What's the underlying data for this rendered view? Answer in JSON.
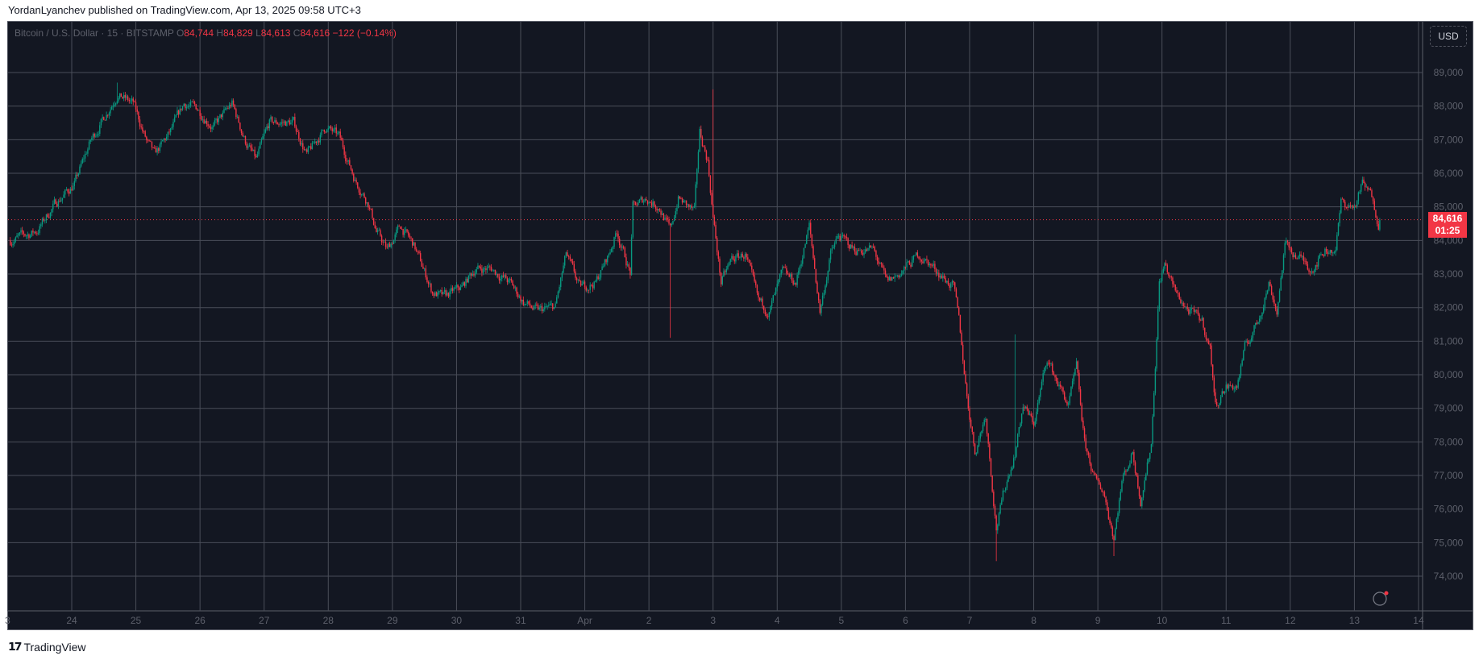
{
  "header": {
    "published": "YordanLyanchev published on TradingView.com, Apr 13, 2025 09:58 UTC+3"
  },
  "legend": {
    "symbol": "Bitcoin / U.S. Dollar · 15 · BITSTAMP",
    "o_label": "O",
    "open": "84,744",
    "h_label": "H",
    "high": "84,829",
    "l_label": "L",
    "low": "84,613",
    "c_label": "C",
    "close": "84,616",
    "change": "−122 (−0.14%)"
  },
  "currency_button": "USD",
  "last_price": {
    "price": "84,616",
    "countdown": "01:25"
  },
  "footer": {
    "logo_text": "TradingView"
  },
  "colors": {
    "background": "#131722",
    "up": "#089981",
    "down": "#f23645",
    "grid": "#4a4e59",
    "axis_text": "#5d606b"
  },
  "chart_data": {
    "type": "candlestick",
    "interval": "15",
    "grid": true,
    "ylim": [
      73000,
      90000
    ],
    "y_ticks": [
      "74,000",
      "75,000",
      "76,000",
      "77,000",
      "78,000",
      "79,000",
      "80,000",
      "81,000",
      "82,000",
      "83,000",
      "84,000",
      "85,000",
      "86,000",
      "87,000",
      "88,000",
      "89,000"
    ],
    "x_ticks": [
      "3",
      "24",
      "25",
      "26",
      "27",
      "28",
      "29",
      "30",
      "31",
      "Apr",
      "2",
      "3",
      "4",
      "5",
      "6",
      "7",
      "8",
      "9",
      "10",
      "11",
      "12",
      "13",
      "14"
    ],
    "close_path": [
      [
        "03-23 01:00",
        84000
      ],
      [
        "03-23 11:00",
        84280
      ],
      [
        "03-23 18:00",
        85120
      ],
      [
        "03-24 01:00",
        85680
      ],
      [
        "03-24 07:00",
        86950
      ],
      [
        "03-24 12:00",
        87650
      ],
      [
        "03-24 17:00",
        88350
      ],
      [
        "03-24 23:00",
        88070
      ],
      [
        "03-25 04:00",
        86950
      ],
      [
        "03-25 07:00",
        86530
      ],
      [
        "03-25 13:00",
        87230
      ],
      [
        "03-25 18:00",
        88070
      ],
      [
        "03-25 23:00",
        87930
      ],
      [
        "03-26 05:00",
        87370
      ],
      [
        "03-26 12:00",
        88070
      ],
      [
        "03-26 17:00",
        86950
      ],
      [
        "03-26 21:00",
        86390
      ],
      [
        "03-27 02:00",
        87510
      ],
      [
        "03-27 11:00",
        87510
      ],
      [
        "03-27 16:00",
        86530
      ],
      [
        "03-27 23:00",
        87370
      ],
      [
        "03-28 04:00",
        87090
      ],
      [
        "03-28 10:00",
        85820
      ],
      [
        "03-28 15:00",
        85120
      ],
      [
        "03-28 18:00",
        84280
      ],
      [
        "03-28 22:00",
        83720
      ],
      [
        "03-29 03:00",
        84420
      ],
      [
        "03-29 08:00",
        83860
      ],
      [
        "03-29 15:00",
        82460
      ],
      [
        "03-29 19:00",
        82310
      ],
      [
        "03-30 02:00",
        82600
      ],
      [
        "03-30 07:00",
        83160
      ],
      [
        "03-30 13:00",
        83160
      ],
      [
        "03-30 20:00",
        82740
      ],
      [
        "03-31 01:00",
        82170
      ],
      [
        "03-31 06:00",
        81890
      ],
      [
        "03-31 13:00",
        82030
      ],
      [
        "03-31 17:00",
        83580
      ],
      [
        "03-31 22:00",
        82600
      ],
      [
        "04-01 04:00",
        82740
      ],
      [
        "04-01 09:00",
        83580
      ],
      [
        "04-01 12:00",
        84280
      ],
      [
        "04-01 17:00",
        83020
      ],
      [
        "04-01 18:00",
        84980
      ],
      [
        "04-01 23:00",
        85260
      ],
      [
        "04-02 04:00",
        84980
      ],
      [
        "04-02 08:00",
        84280
      ],
      [
        "04-02 11:00",
        85260
      ],
      [
        "04-02 17:00",
        84840
      ],
      [
        "04-02 19:00",
        87230
      ],
      [
        "04-02 22:00",
        86390
      ],
      [
        "04-03 00:00",
        84700
      ],
      [
        "04-03 03:00",
        82740
      ],
      [
        "04-03 07:00",
        83440
      ],
      [
        "04-03 12:00",
        83580
      ],
      [
        "04-03 17:00",
        82170
      ],
      [
        "04-03 21:00",
        81890
      ],
      [
        "04-04 02:00",
        83020
      ],
      [
        "04-04 07:00",
        82740
      ],
      [
        "04-04 12:00",
        84420
      ],
      [
        "04-04 16:00",
        81890
      ],
      [
        "04-04 20:00",
        83580
      ],
      [
        "04-04 23:00",
        84140
      ],
      [
        "04-05 05:00",
        83720
      ],
      [
        "04-05 12:00",
        83720
      ],
      [
        "04-05 17:00",
        82740
      ],
      [
        "04-05 22:00",
        83020
      ],
      [
        "04-06 05:00",
        83580
      ],
      [
        "04-06 11:00",
        83160
      ],
      [
        "04-06 18:00",
        82600
      ],
      [
        "04-06 20:00",
        81610
      ],
      [
        "04-06 23:00",
        79370
      ],
      [
        "04-07 02:00",
        77690
      ],
      [
        "04-07 06:00",
        78810
      ],
      [
        "04-07 10:00",
        75440
      ],
      [
        "04-07 13:00",
        76560
      ],
      [
        "04-07 17:00",
        77690
      ],
      [
        "04-07 20:00",
        79090
      ],
      [
        "04-08 00:00",
        78530
      ],
      [
        "04-08 05:00",
        80490
      ],
      [
        "04-08 08:00",
        79930
      ],
      [
        "04-08 13:00",
        79090
      ],
      [
        "04-08 16:00",
        80210
      ],
      [
        "04-08 19:00",
        77960
      ],
      [
        "04-08 23:00",
        76840
      ],
      [
        "04-09 02:00",
        76560
      ],
      [
        "04-09 06:00",
        75160
      ],
      [
        "04-09 09:00",
        76840
      ],
      [
        "04-09 13:00",
        77690
      ],
      [
        "04-09 16:00",
        76280
      ],
      [
        "04-09 20:00",
        77960
      ],
      [
        "04-09 23:00",
        82740
      ],
      [
        "04-10 01:00",
        83300
      ],
      [
        "04-10 05:00",
        82460
      ],
      [
        "04-10 10:00",
        81890
      ],
      [
        "04-10 15:00",
        81610
      ],
      [
        "04-10 18:00",
        80770
      ],
      [
        "04-10 20:00",
        79090
      ],
      [
        "04-11 00:00",
        79650
      ],
      [
        "04-11 04:00",
        79650
      ],
      [
        "04-11 07:00",
        80770
      ],
      [
        "04-11 12:00",
        81610
      ],
      [
        "04-11 16:00",
        82740
      ],
      [
        "04-11 19:00",
        81890
      ],
      [
        "04-11 22:00",
        83860
      ],
      [
        "04-12 02:00",
        83580
      ],
      [
        "04-12 08:00",
        83160
      ],
      [
        "04-12 13:00",
        83720
      ],
      [
        "04-12 17:00",
        83720
      ],
      [
        "04-12 19:00",
        85120
      ],
      [
        "04-13 00:00",
        84980
      ],
      [
        "04-13 03:00",
        85680
      ],
      [
        "04-13 07:00",
        85260
      ],
      [
        "04-13 09:00",
        84560
      ],
      [
        "04-13 09:45",
        84616
      ]
    ],
    "extreme_wicks": [
      {
        "t": "03-24 17:00",
        "high": 88700
      },
      {
        "t": "04-02 08:00",
        "low": 81100
      },
      {
        "t": "04-03 00:00",
        "high": 88500
      },
      {
        "t": "04-07 10:00",
        "low": 74450
      },
      {
        "t": "04-07 17:00",
        "high": 81200
      },
      {
        "t": "04-09 06:00",
        "low": 74600
      }
    ],
    "last_close": 84616
  }
}
